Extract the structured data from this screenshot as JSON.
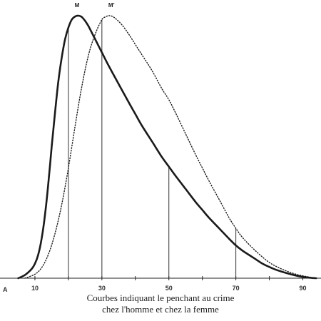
{
  "chart_data": {
    "type": "line",
    "caption_line_1": "Courbes indiquant le penchant au crime",
    "caption_line_2": "chez l'homme et chez la femme",
    "origin_label": "A",
    "xlim": [
      0,
      95
    ],
    "ylim": [
      0,
      1
    ],
    "x_ticks": [
      10,
      30,
      50,
      70,
      90
    ],
    "x_minor_ticks": [
      20,
      40,
      60,
      80
    ],
    "series": [
      {
        "peak_label": "M",
        "style": "solid",
        "color": "#1a1a1a",
        "x": [
          5,
          7,
          9,
          10,
          11,
          12,
          13,
          14,
          15,
          16,
          17,
          18,
          19,
          20,
          21,
          22,
          23,
          24,
          25,
          26,
          27,
          28,
          30,
          32,
          35,
          38,
          40,
          42,
          45,
          48,
          50,
          52,
          55,
          58,
          60,
          62,
          65,
          68,
          70,
          72,
          75,
          78,
          80,
          82,
          85,
          88,
          90,
          92,
          94
        ],
        "y": [
          0.0,
          0.012,
          0.035,
          0.055,
          0.09,
          0.15,
          0.24,
          0.36,
          0.5,
          0.63,
          0.75,
          0.84,
          0.91,
          0.955,
          0.985,
          0.997,
          1.0,
          0.995,
          0.98,
          0.96,
          0.935,
          0.91,
          0.86,
          0.81,
          0.74,
          0.67,
          0.625,
          0.58,
          0.52,
          0.46,
          0.425,
          0.39,
          0.34,
          0.29,
          0.26,
          0.23,
          0.19,
          0.15,
          0.125,
          0.105,
          0.08,
          0.055,
          0.043,
          0.032,
          0.02,
          0.01,
          0.005,
          0.002,
          0.0
        ]
      },
      {
        "peak_label": "M′",
        "style": "dotted",
        "color": "#1a1a1a",
        "x": [
          7,
          10,
          12,
          14,
          16,
          18,
          20,
          22,
          24,
          26,
          28,
          30,
          31,
          32,
          33,
          34,
          36,
          38,
          40,
          42,
          45,
          48,
          50,
          52,
          55,
          58,
          60,
          62,
          65,
          68,
          70,
          72,
          75,
          78,
          80,
          82,
          85,
          88,
          90,
          92,
          94
        ],
        "y": [
          0.0,
          0.015,
          0.04,
          0.09,
          0.17,
          0.28,
          0.42,
          0.58,
          0.73,
          0.85,
          0.93,
          0.985,
          0.995,
          1.0,
          0.998,
          0.99,
          0.965,
          0.93,
          0.89,
          0.85,
          0.79,
          0.72,
          0.68,
          0.63,
          0.55,
          0.47,
          0.42,
          0.37,
          0.3,
          0.23,
          0.19,
          0.155,
          0.115,
          0.08,
          0.06,
          0.045,
          0.028,
          0.015,
          0.009,
          0.004,
          0.0
        ]
      }
    ],
    "vertical_lines": [
      {
        "x": 20,
        "series": 0
      },
      {
        "x": 30,
        "series": 1
      },
      {
        "x": 50,
        "series": 0
      },
      {
        "x": 70,
        "series": 1
      }
    ]
  }
}
